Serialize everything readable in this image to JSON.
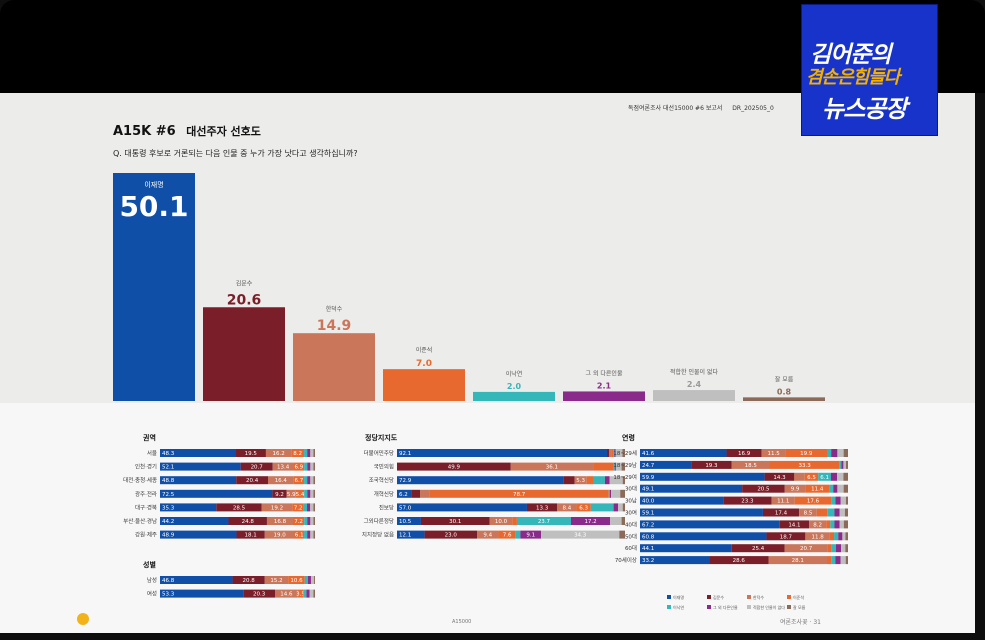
{
  "header": {
    "meta": [
      "독점여론조사 대선15000 #6 보고서",
      "DR_202505_0"
    ],
    "title": "A15K #6",
    "subtitle": "대선주자 선호도",
    "question": "Q. 대통령 후보로 거론되는 다음 인물 중 누가 가장 낫다고 생각하십니까?"
  },
  "logo": {
    "line1": "김어준의",
    "line2": "겸손은힘들다",
    "line3": "뉴스공장"
  },
  "footer": {
    "left": "",
    "mid": "A15000",
    "right": "여론조사꽃 · 31"
  },
  "colors": {
    "lee": "#0f4fa8",
    "kim": "#7a1f2a",
    "han": "#c9765a",
    "ljs": "#e8692f",
    "lna": "#35b6b9",
    "etc": "#8a2a8a",
    "none": "#bfbfbf",
    "dk": "#8c6a5a",
    "bg_top": "#ececea"
  },
  "chart_data": [
    {
      "type": "bar",
      "categories": [
        "이재명",
        "김문수",
        "한덕수",
        "이준석",
        "이낙연",
        "그 외 다른인물",
        "적합한 인물이 없다",
        "잘 모름"
      ],
      "values": [
        50.1,
        20.6,
        14.9,
        7.0,
        2.0,
        2.1,
        2.4,
        0.8
      ],
      "ylim": [
        0,
        55
      ]
    },
    {
      "type": "bar",
      "stacked": true,
      "title": "권역",
      "categories": [
        "서울",
        "인천·경기",
        "대전·충청·세종",
        "광주·전라",
        "대구·경북",
        "부산·울산·경남",
        "강원·제주"
      ],
      "series": [
        {
          "values": [
            48.3,
            52.1,
            48.8,
            72.5,
            35.3,
            44.2,
            48.9
          ]
        },
        {
          "values": [
            19.5,
            20.7,
            20.4,
            9.2,
            28.5,
            24.8,
            18.1
          ]
        },
        {
          "values": [
            16.2,
            13.4,
            16.4,
            5.9,
            19.2,
            16.8,
            19.0
          ]
        },
        {
          "values": [
            8.2,
            6.9,
            6.7,
            5.4,
            7.2,
            7.2,
            6.1
          ]
        },
        {
          "values": [
            2.0,
            2.0,
            2.0,
            2.0,
            2.0,
            2.0,
            2.0
          ]
        },
        {
          "values": [
            2.0,
            2.0,
            2.0,
            2.0,
            2.0,
            2.0,
            2.0
          ]
        },
        {
          "values": [
            2.0,
            2.0,
            2.0,
            2.0,
            2.0,
            2.0,
            2.0
          ]
        },
        {
          "values": [
            1.0,
            1.0,
            1.0,
            1.0,
            1.0,
            1.0,
            1.0
          ]
        }
      ]
    },
    {
      "type": "bar",
      "stacked": true,
      "title": "성별",
      "categories": [
        "남성",
        "여성"
      ],
      "series": [
        {
          "values": [
            46.8,
            53.3
          ]
        },
        {
          "values": [
            20.8,
            20.3
          ]
        },
        {
          "values": [
            15.2,
            14.6
          ]
        },
        {
          "values": [
            10.6,
            3.5
          ]
        },
        {
          "values": [
            2.0,
            2.0
          ]
        },
        {
          "values": [
            2.0,
            2.0
          ]
        },
        {
          "values": [
            2.0,
            2.5
          ]
        },
        {
          "values": [
            0.6,
            1.0
          ]
        }
      ]
    },
    {
      "type": "bar",
      "stacked": true,
      "title": "정당지지도",
      "categories": [
        "더불어민주당",
        "국민의힘",
        "조국혁신당",
        "개혁신당",
        "진보당",
        "그외다른정당",
        "지지정당 없음"
      ],
      "series": [
        {
          "values": [
            92.1,
            0,
            72.9,
            6.2,
            57.0,
            10.5,
            12.1
          ]
        },
        {
          "values": [
            1.0,
            49.9,
            5.0,
            4.0,
            13.3,
            30.1,
            23.0
          ]
        },
        {
          "values": [
            0.8,
            36.1,
            5.3,
            4.0,
            8.4,
            10.0,
            9.4
          ]
        },
        {
          "values": [
            1.0,
            9.0,
            3.0,
            78.7,
            6.3,
            2.0,
            7.6
          ]
        },
        {
          "values": [
            0.5,
            0.5,
            5.0,
            0.5,
            10.0,
            23.7,
            2.0
          ]
        },
        {
          "values": [
            0.5,
            0.5,
            2.0,
            0.5,
            2.0,
            17.2,
            9.1
          ]
        },
        {
          "values": [
            3.0,
            2.5,
            5.8,
            4.0,
            2.0,
            5.0,
            34.3
          ]
        },
        {
          "values": [
            1.1,
            1.5,
            1.0,
            2.1,
            1.0,
            1.5,
            2.5
          ]
        }
      ],
      "value_labels": [
        [
          "92.1",
          "",
          "",
          "",
          "",
          "",
          "",
          ""
        ],
        [
          "",
          "49.9",
          "36.1",
          "",
          "",
          "",
          "",
          ""
        ],
        [
          "72.9",
          "",
          "5.3",
          "",
          "",
          "",
          "",
          ""
        ],
        [
          "6.2",
          "",
          "",
          "78.7",
          "",
          "",
          "",
          ""
        ],
        [
          "57.0",
          "13.3",
          "8.4",
          "6.3",
          "",
          "",
          "",
          ""
        ],
        [
          "10.5",
          "30.1",
          "10.0",
          "",
          "23.7",
          "17.2",
          "",
          ""
        ],
        [
          "12.1",
          "23.0",
          "9.4",
          "7.6",
          "",
          "9.1",
          "34.3",
          ""
        ]
      ]
    },
    {
      "type": "bar",
      "stacked": true,
      "title": "연령",
      "categories": [
        "18~29세",
        "18~29남",
        "18~29여",
        "30대",
        "30남",
        "30여",
        "40대",
        "50대",
        "60대",
        "70세이상"
      ],
      "series": [
        {
          "values": [
            41.6,
            24.7,
            59.9,
            49.1,
            40.0,
            59.1,
            67.2,
            60.8,
            44.1,
            33.2
          ]
        },
        {
          "values": [
            16.9,
            19.3,
            14.3,
            20.5,
            23.3,
            17.4,
            14.1,
            18.7,
            25.4,
            28.6
          ]
        },
        {
          "values": [
            11.5,
            18.5,
            5.0,
            9.9,
            11.1,
            8.5,
            8.2,
            11.8,
            20.7,
            28.1
          ]
        },
        {
          "values": [
            19.9,
            33.3,
            6.5,
            11.4,
            17.6,
            5.0,
            2.0,
            2.0,
            2.0,
            2.0
          ]
        },
        {
          "values": [
            2.0,
            1.0,
            6.1,
            2.0,
            2.0,
            3.5,
            2.0,
            2.0,
            2.0,
            2.0
          ]
        },
        {
          "values": [
            3.0,
            1.0,
            3.0,
            2.0,
            2.5,
            2.5,
            2.5,
            2.0,
            2.5,
            2.5
          ]
        },
        {
          "values": [
            3.0,
            1.2,
            3.0,
            3.0,
            2.5,
            2.5,
            2.0,
            1.5,
            2.0,
            2.5
          ]
        },
        {
          "values": [
            2.1,
            1.0,
            2.2,
            2.1,
            1.0,
            1.5,
            2.0,
            1.2,
            1.3,
            1.1
          ]
        }
      ],
      "value_labels": [
        [
          "41.6",
          "16.9",
          "11.5",
          "19.9",
          "",
          "",
          "",
          ""
        ],
        [
          "24.7",
          "19.3",
          "18.5",
          "33.3",
          "",
          "",
          "",
          ""
        ],
        [
          "59.9",
          "14.3",
          "",
          "6.5",
          "6.1",
          "",
          "",
          ""
        ],
        [
          "49.1",
          "20.5",
          "9.9",
          "11.4",
          "",
          "",
          "",
          ""
        ],
        [
          "40.0",
          "23.3",
          "11.1",
          "17.6",
          "",
          "",
          "",
          ""
        ],
        [
          "59.1",
          "17.4",
          "8.5",
          "",
          "",
          "",
          "",
          ""
        ],
        [
          "67.2",
          "14.1",
          "8.2",
          "",
          "",
          "",
          "",
          ""
        ],
        [
          "60.8",
          "18.7",
          "11.8",
          "",
          "",
          "",
          "",
          ""
        ],
        [
          "44.1",
          "25.4",
          "20.7",
          "",
          "",
          "",
          "",
          ""
        ],
        [
          "33.2",
          "28.6",
          "28.1",
          "",
          "",
          "",
          "",
          ""
        ]
      ]
    }
  ],
  "legend": [
    "이재명",
    "김문수",
    "한덕수",
    "이준석",
    "이낙연",
    "그 외 다른인물",
    "적합한 인물이 없다",
    "잘 모름"
  ]
}
